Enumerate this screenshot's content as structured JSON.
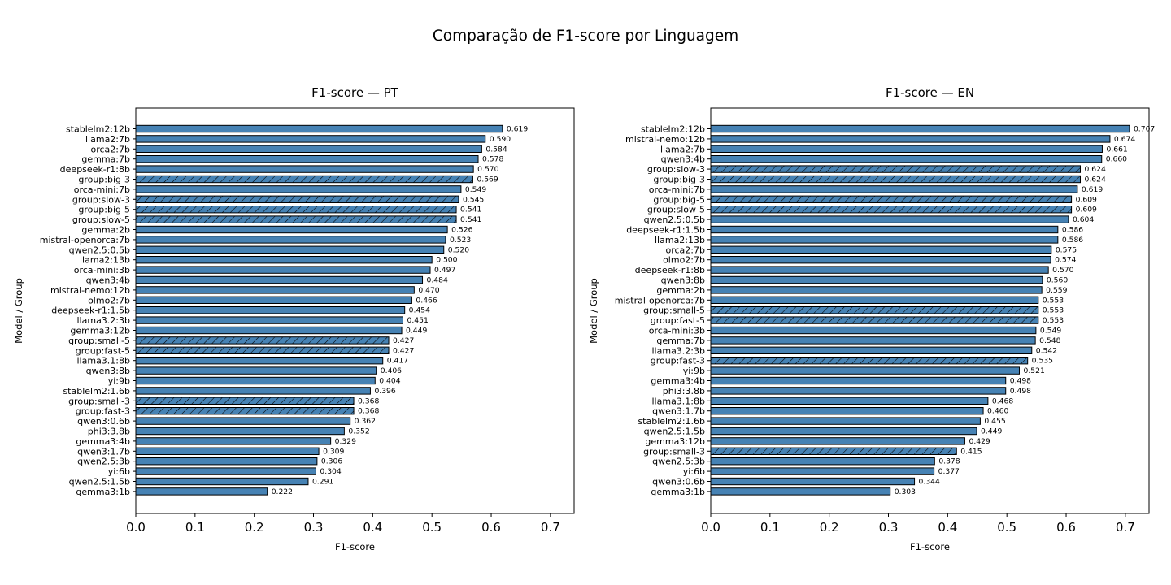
{
  "suptitle": "Comparação de F1-score por Linguagem",
  "colors": {
    "bar": "#4682b4",
    "edge": "#000000",
    "hatch": "#000000"
  },
  "chart_data": [
    {
      "type": "bar",
      "orientation": "horizontal",
      "title": "F1-score — PT",
      "xlabel": "F1-score",
      "ylabel": "Model / Group",
      "xlim": [
        0,
        0.74
      ],
      "xticks": [
        "0.0",
        "0.1",
        "0.2",
        "0.3",
        "0.4",
        "0.5",
        "0.6",
        "0.7"
      ],
      "grid": false,
      "categories": [
        "stablelm2:12b",
        "llama2:7b",
        "orca2:7b",
        "gemma:7b",
        "deepseek-r1:8b",
        "group:big-3",
        "orca-mini:7b",
        "group:slow-3",
        "group:big-5",
        "group:slow-5",
        "gemma:2b",
        "mistral-openorca:7b",
        "qwen2.5:0.5b",
        "llama2:13b",
        "orca-mini:3b",
        "qwen3:4b",
        "mistral-nemo:12b",
        "olmo2:7b",
        "deepseek-r1:1.5b",
        "llama3.2:3b",
        "gemma3:12b",
        "group:small-5",
        "group:fast-5",
        "llama3.1:8b",
        "qwen3:8b",
        "yi:9b",
        "stablelm2:1.6b",
        "group:small-3",
        "group:fast-3",
        "qwen3:0.6b",
        "phi3:3.8b",
        "gemma3:4b",
        "qwen3:1.7b",
        "qwen2.5:3b",
        "yi:6b",
        "qwen2.5:1.5b",
        "gemma3:1b"
      ],
      "values": [
        0.619,
        0.59,
        0.584,
        0.578,
        0.57,
        0.569,
        0.549,
        0.545,
        0.541,
        0.541,
        0.526,
        0.523,
        0.52,
        0.5,
        0.497,
        0.484,
        0.47,
        0.466,
        0.454,
        0.451,
        0.449,
        0.427,
        0.427,
        0.417,
        0.406,
        0.404,
        0.396,
        0.368,
        0.368,
        0.362,
        0.352,
        0.329,
        0.309,
        0.306,
        0.304,
        0.291,
        0.222
      ],
      "value_labels": [
        "0.619",
        "0.590",
        "0.584",
        "0.578",
        "0.570",
        "0.569",
        "0.549",
        "0.545",
        "0.541",
        "0.541",
        "0.526",
        "0.523",
        "0.520",
        "0.500",
        "0.497",
        "0.484",
        "0.470",
        "0.466",
        "0.454",
        "0.451",
        "0.449",
        "0.427",
        "0.427",
        "0.417",
        "0.406",
        "0.404",
        "0.396",
        "0.368",
        "0.368",
        "0.362",
        "0.352",
        "0.329",
        "0.309",
        "0.306",
        "0.304",
        "0.291",
        "0.222"
      ]
    },
    {
      "type": "bar",
      "orientation": "horizontal",
      "title": "F1-score — EN",
      "xlabel": "F1-score",
      "ylabel": "Model / Group",
      "xlim": [
        0,
        0.74
      ],
      "xticks": [
        "0.0",
        "0.1",
        "0.2",
        "0.3",
        "0.4",
        "0.5",
        "0.6",
        "0.7"
      ],
      "grid": false,
      "categories": [
        "stablelm2:12b",
        "mistral-nemo:12b",
        "llama2:7b",
        "qwen3:4b",
        "group:slow-3",
        "group:big-3",
        "orca-mini:7b",
        "group:big-5",
        "group:slow-5",
        "qwen2.5:0.5b",
        "deepseek-r1:1.5b",
        "llama2:13b",
        "orca2:7b",
        "olmo2:7b",
        "deepseek-r1:8b",
        "qwen3:8b",
        "gemma:2b",
        "mistral-openorca:7b",
        "group:small-5",
        "group:fast-5",
        "orca-mini:3b",
        "gemma:7b",
        "llama3.2:3b",
        "group:fast-3",
        "yi:9b",
        "gemma3:4b",
        "phi3:3.8b",
        "llama3.1:8b",
        "qwen3:1.7b",
        "stablelm2:1.6b",
        "qwen2.5:1.5b",
        "gemma3:12b",
        "group:small-3",
        "qwen2.5:3b",
        "yi:6b",
        "qwen3:0.6b",
        "gemma3:1b"
      ],
      "values": [
        0.707,
        0.674,
        0.661,
        0.66,
        0.624,
        0.624,
        0.619,
        0.609,
        0.609,
        0.604,
        0.586,
        0.586,
        0.575,
        0.574,
        0.57,
        0.56,
        0.559,
        0.553,
        0.553,
        0.553,
        0.549,
        0.548,
        0.542,
        0.535,
        0.521,
        0.498,
        0.498,
        0.468,
        0.46,
        0.455,
        0.449,
        0.429,
        0.415,
        0.378,
        0.377,
        0.344,
        0.303
      ],
      "value_labels": [
        "0.707",
        "0.674",
        "0.661",
        "0.660",
        "0.624",
        "0.624",
        "0.619",
        "0.609",
        "0.609",
        "0.604",
        "0.586",
        "0.586",
        "0.575",
        "0.574",
        "0.570",
        "0.560",
        "0.559",
        "0.553",
        "0.553",
        "0.553",
        "0.549",
        "0.548",
        "0.542",
        "0.535",
        "0.521",
        "0.498",
        "0.498",
        "0.468",
        "0.460",
        "0.455",
        "0.449",
        "0.429",
        "0.415",
        "0.378",
        "0.377",
        "0.344",
        "0.303"
      ]
    }
  ]
}
